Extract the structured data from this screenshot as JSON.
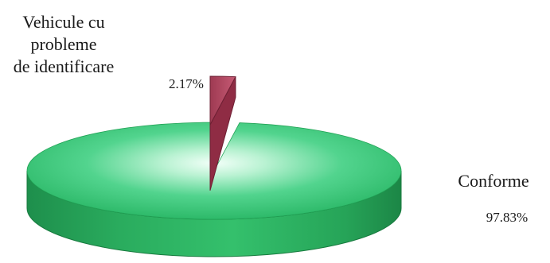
{
  "chart_data": {
    "type": "pie",
    "style": "3d-exploded",
    "title": "",
    "slices": [
      {
        "label_lines": [
          "Vehicule cu",
          "probleme",
          "de identificare"
        ],
        "value": 2.17,
        "value_label": "2.17%",
        "color": "#b4455f",
        "exploded": true
      },
      {
        "label_lines": [
          "Conforme"
        ],
        "value": 97.83,
        "value_label": "97.83%",
        "color": "#2fbf6a",
        "exploded": false
      }
    ],
    "background_color": "#ffffff"
  }
}
